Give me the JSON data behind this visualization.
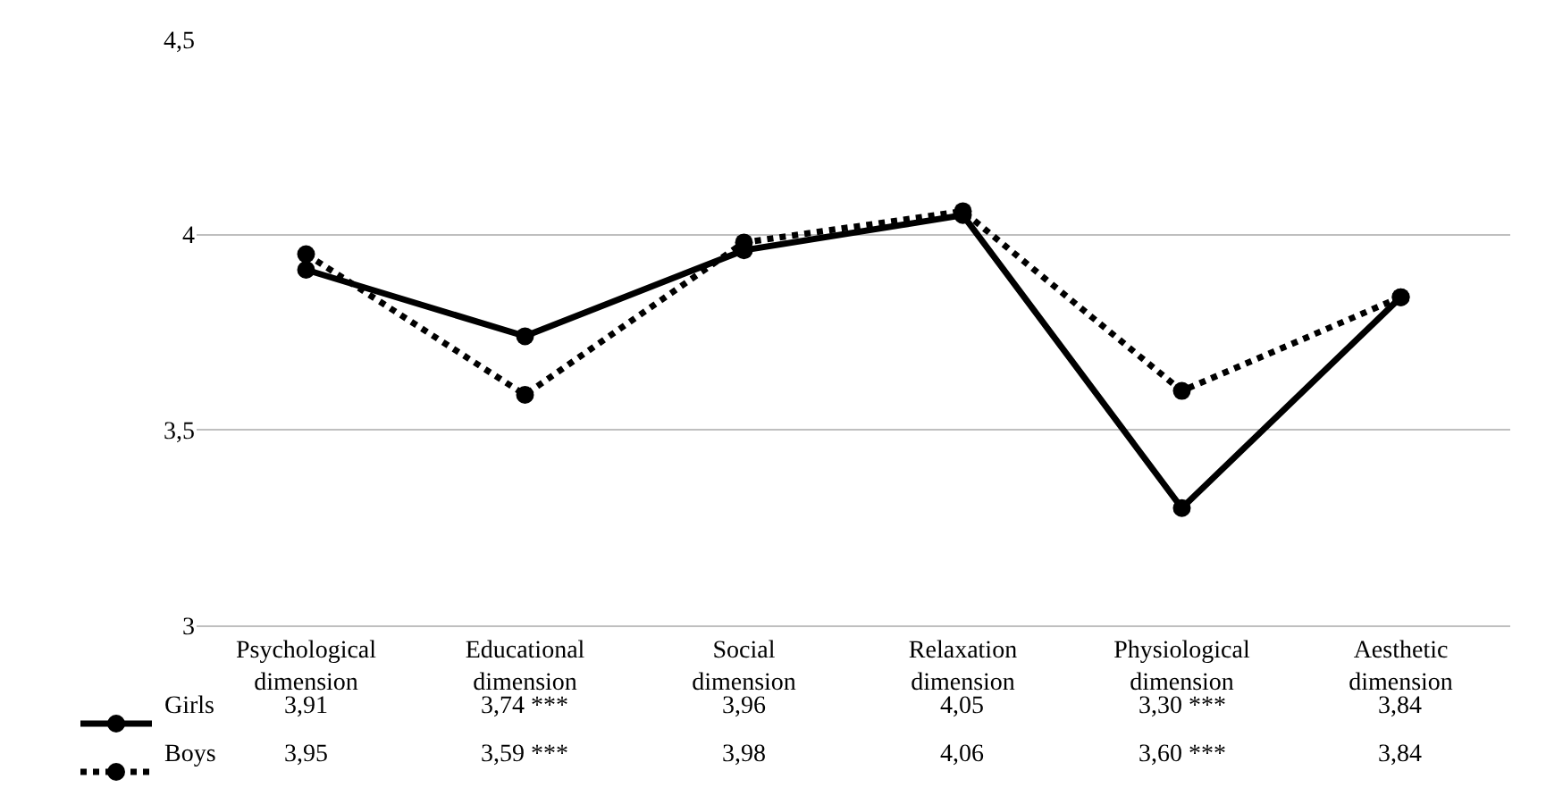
{
  "chart_data": {
    "type": "line",
    "categories": [
      "Psychological\ndimension",
      "Educational\ndimension",
      "Social\ndimension",
      "Relaxation\ndimension",
      "Physiological\ndimension",
      "Aesthetic\ndimension"
    ],
    "series": [
      {
        "name": "Girls",
        "color": "#000000",
        "line_style": "solid",
        "values": [
          3.91,
          3.74,
          3.96,
          4.05,
          3.3,
          3.84
        ],
        "value_labels": [
          "3,91",
          "3,74 ***",
          "3,96",
          "4,05",
          "3,30 ***",
          "3,84"
        ]
      },
      {
        "name": "Boys",
        "color": "#000000",
        "line_style": "dotted",
        "values": [
          3.95,
          3.59,
          3.98,
          4.06,
          3.6,
          3.84
        ],
        "value_labels": [
          "3,95",
          "3,59 ***",
          "3,98",
          "4,06",
          "3,60 ***",
          "3,84"
        ]
      }
    ],
    "ylim": [
      3,
      4.5
    ],
    "yticks": [
      3,
      {
        "value": 3.5,
        "label": "3,5"
      },
      4,
      {
        "value": 4.5,
        "label": "4,5"
      }
    ],
    "grid": "y",
    "marker": "circle",
    "legend": "bottom left"
  }
}
